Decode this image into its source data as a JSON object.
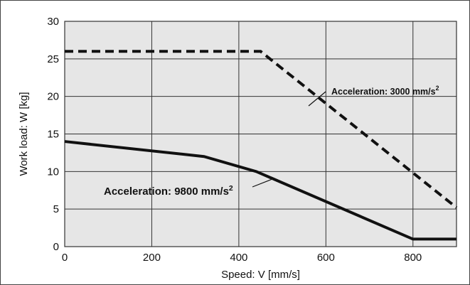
{
  "chart_data": {
    "type": "line",
    "title": "",
    "xlabel": "Speed: V [mm/s]",
    "ylabel": "Work load: W [kg]",
    "xlim": [
      0,
      900
    ],
    "ylim": [
      0,
      30
    ],
    "x_ticks": [
      "0",
      "200",
      "400",
      "600",
      "800"
    ],
    "y_ticks": [
      "0",
      "5",
      "10",
      "15",
      "20",
      "25",
      "30"
    ],
    "grid": true,
    "background_color": "#e6e6e6",
    "grid_color": "#333333",
    "series": [
      {
        "style": "dashed",
        "color": "#111111",
        "x": [
          0,
          450,
          900
        ],
        "y": [
          26,
          26,
          5.2
        ]
      },
      {
        "style": "solid",
        "color": "#111111",
        "x": [
          0,
          320,
          440,
          800,
          900
        ],
        "y": [
          14,
          12,
          10,
          1,
          1
        ]
      }
    ],
    "annotations": [
      {
        "prefix": "Acceleration: 3000 mm/s",
        "sup": "2",
        "points_to": "dashed series",
        "x": 540,
        "y": 22.5
      },
      {
        "prefix": "Acceleration: 9800 mm/s",
        "sup": "2",
        "points_to": "solid series",
        "x": 465,
        "y": 7.9
      }
    ]
  }
}
